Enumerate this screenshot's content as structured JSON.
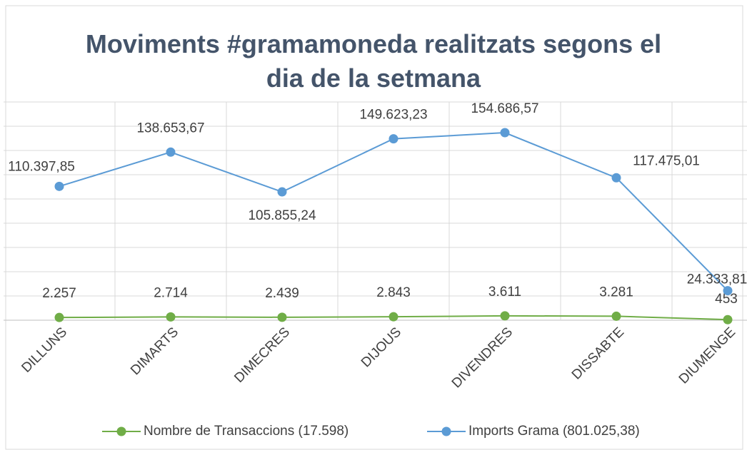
{
  "chart_data": {
    "type": "line",
    "title": "Moviments #gramamoneda realitzats segons el dia de la setmana",
    "categories": [
      "DILLUNS",
      "DIMARTS",
      "DIMECRES",
      "DIJOUS",
      "DIVENDRES",
      "DISSABTE",
      "DIUMENGE"
    ],
    "series": [
      {
        "name": "Nombre de Transaccions (17.598)",
        "color": "#70ad47",
        "values": [
          2257,
          2714,
          2439,
          2843,
          3611,
          3281,
          453
        ],
        "value_labels": [
          "2.257",
          "2.714",
          "2.439",
          "2.843",
          "3.611",
          "3.281",
          "453"
        ]
      },
      {
        "name": "Imports Grama (801.025,38)",
        "color": "#5b9bd5",
        "values": [
          110397.85,
          138653.67,
          105855.24,
          149623.23,
          154686.57,
          117475.01,
          24333.81
        ],
        "value_labels": [
          "110.397,85",
          "138.653,67",
          "105.855,24",
          "149.623,23",
          "154.686,57",
          "117.475,01",
          "24.333,81"
        ]
      }
    ],
    "ylim": [
      0,
      180000
    ],
    "yticks": [
      0,
      20000,
      40000,
      60000,
      80000,
      100000,
      120000,
      140000,
      160000,
      180000
    ],
    "grid": true,
    "legend": "bottom"
  }
}
